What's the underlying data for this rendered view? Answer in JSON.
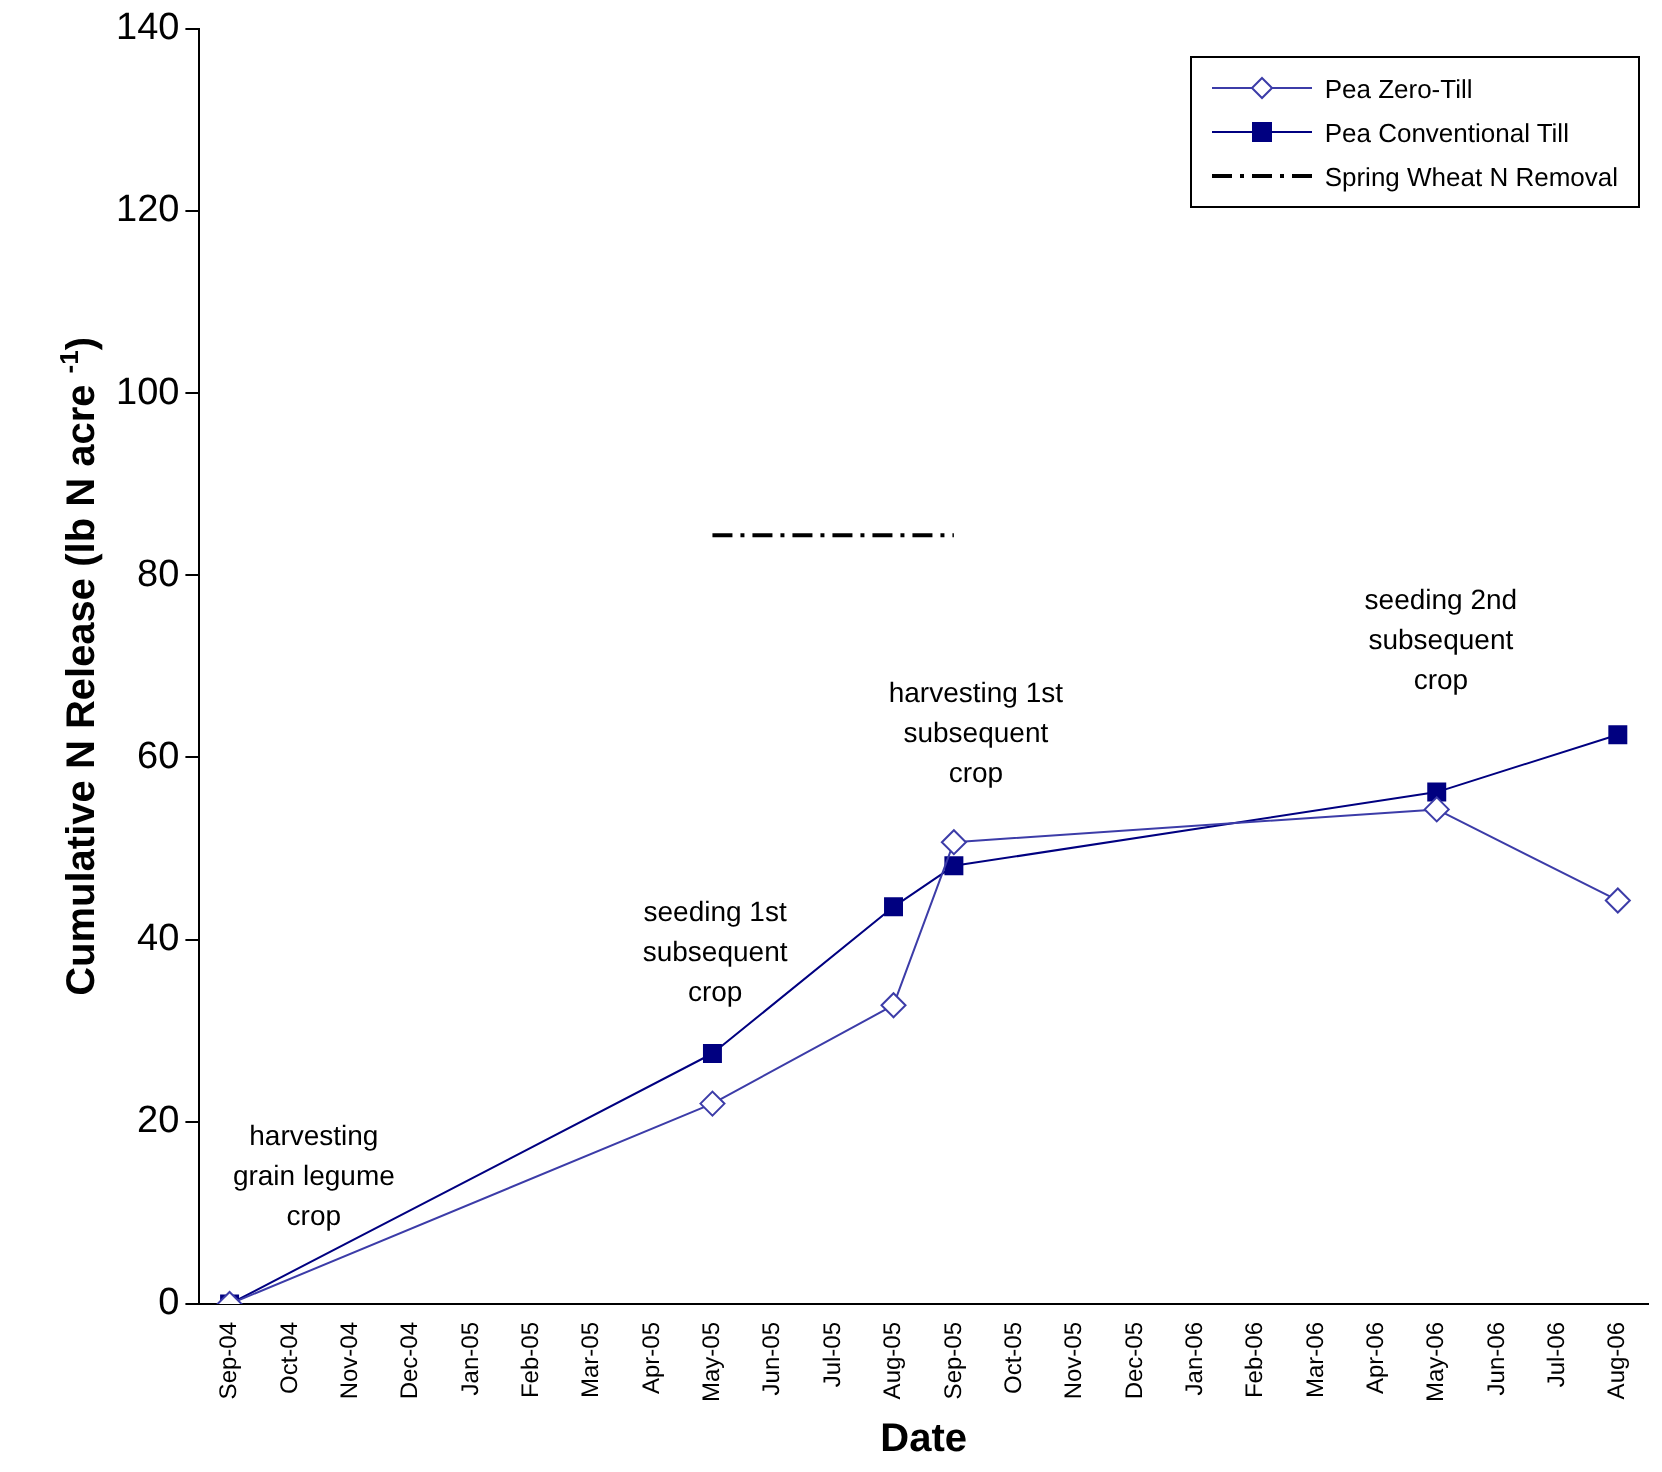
{
  "chart_data": {
    "type": "line",
    "xlabel": "Date",
    "ylabel": "Cumulative N Release (lb N acre $^{-1}$)",
    "categories": [
      "Sep-04",
      "Oct-04",
      "Nov-04",
      "Dec-04",
      "Jan-05",
      "Feb-05",
      "Mar-05",
      "Apr-05",
      "May-05",
      "Jun-05",
      "Jul-05",
      "Aug-05",
      "Sep-05",
      "Oct-05",
      "Nov-05",
      "Dec-05",
      "Jan-06",
      "Feb-06",
      "Mar-06",
      "Apr-06",
      "May-06",
      "Jun-06",
      "Jul-06",
      "Aug-06"
    ],
    "series": [
      {
        "name": "Pea Zero-Till",
        "color": "#3c3ca8",
        "marker": "diamond",
        "line_style": "solid",
        "values": [
          0,
          null,
          null,
          null,
          null,
          null,
          null,
          null,
          22,
          null,
          null,
          32.8,
          50.7,
          null,
          null,
          null,
          null,
          null,
          null,
          null,
          54.3,
          null,
          null,
          44.3
        ]
      },
      {
        "name": "Pea Conventional Till",
        "color": "#000080",
        "marker": "square",
        "line_style": "solid",
        "values": [
          0,
          null,
          null,
          null,
          null,
          null,
          null,
          null,
          27.5,
          null,
          null,
          43.6,
          48.1,
          null,
          null,
          null,
          null,
          null,
          null,
          null,
          56.2,
          null,
          null,
          62.5
        ]
      },
      {
        "name": "Spring Wheat N Removal",
        "color": "#000000",
        "marker": "none",
        "line_style": "dashed",
        "values": [
          null,
          null,
          null,
          null,
          null,
          null,
          null,
          null,
          84.4,
          84.4,
          84.4,
          84.4,
          84.4,
          null,
          null,
          null,
          null,
          null,
          null,
          null,
          null,
          null,
          null,
          null
        ]
      }
    ],
    "ylim": [
      0,
      140
    ],
    "yticks": [
      0,
      20,
      40,
      60,
      80,
      100,
      120,
      140
    ],
    "grid": false,
    "legend": "top right",
    "annotations": [
      "harvesting grain legume crop",
      "seeding 1st subsequent crop",
      "harvesting 1st subsequent crop",
      "seeding 2nd subsequent crop"
    ]
  }
}
